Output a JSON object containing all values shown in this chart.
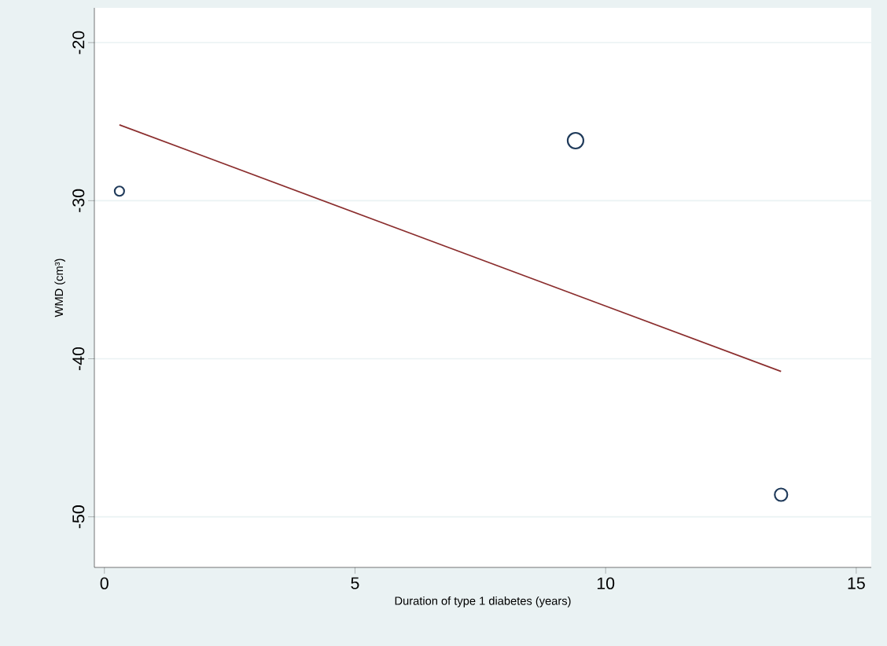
{
  "chart_data": {
    "type": "bubble",
    "xlabel": "Duration of type 1 diabetes (years)",
    "ylabel": "WMD (cm³)",
    "xlim": [
      -0.2,
      15.3
    ],
    "ylim": [
      -53.2,
      -17.8
    ],
    "xticks": [
      0,
      5,
      10,
      15
    ],
    "yticks": [
      -50,
      -40,
      -30,
      -20
    ],
    "grid": "y",
    "marker": "circle",
    "series": [
      {
        "color": "#1f3a5a",
        "x": [
          0.3,
          9.4,
          13.5
        ],
        "values": [
          -29.4,
          -26.2,
          -48.6
        ],
        "sizes": [
          0.36,
          1,
          0.64
        ]
      },
      {
        "type": "line",
        "color": "#8b2e2e",
        "x": [
          0.3,
          13.5
        ],
        "values": [
          -25.2,
          -40.8
        ],
        "marker": "none"
      }
    ]
  }
}
